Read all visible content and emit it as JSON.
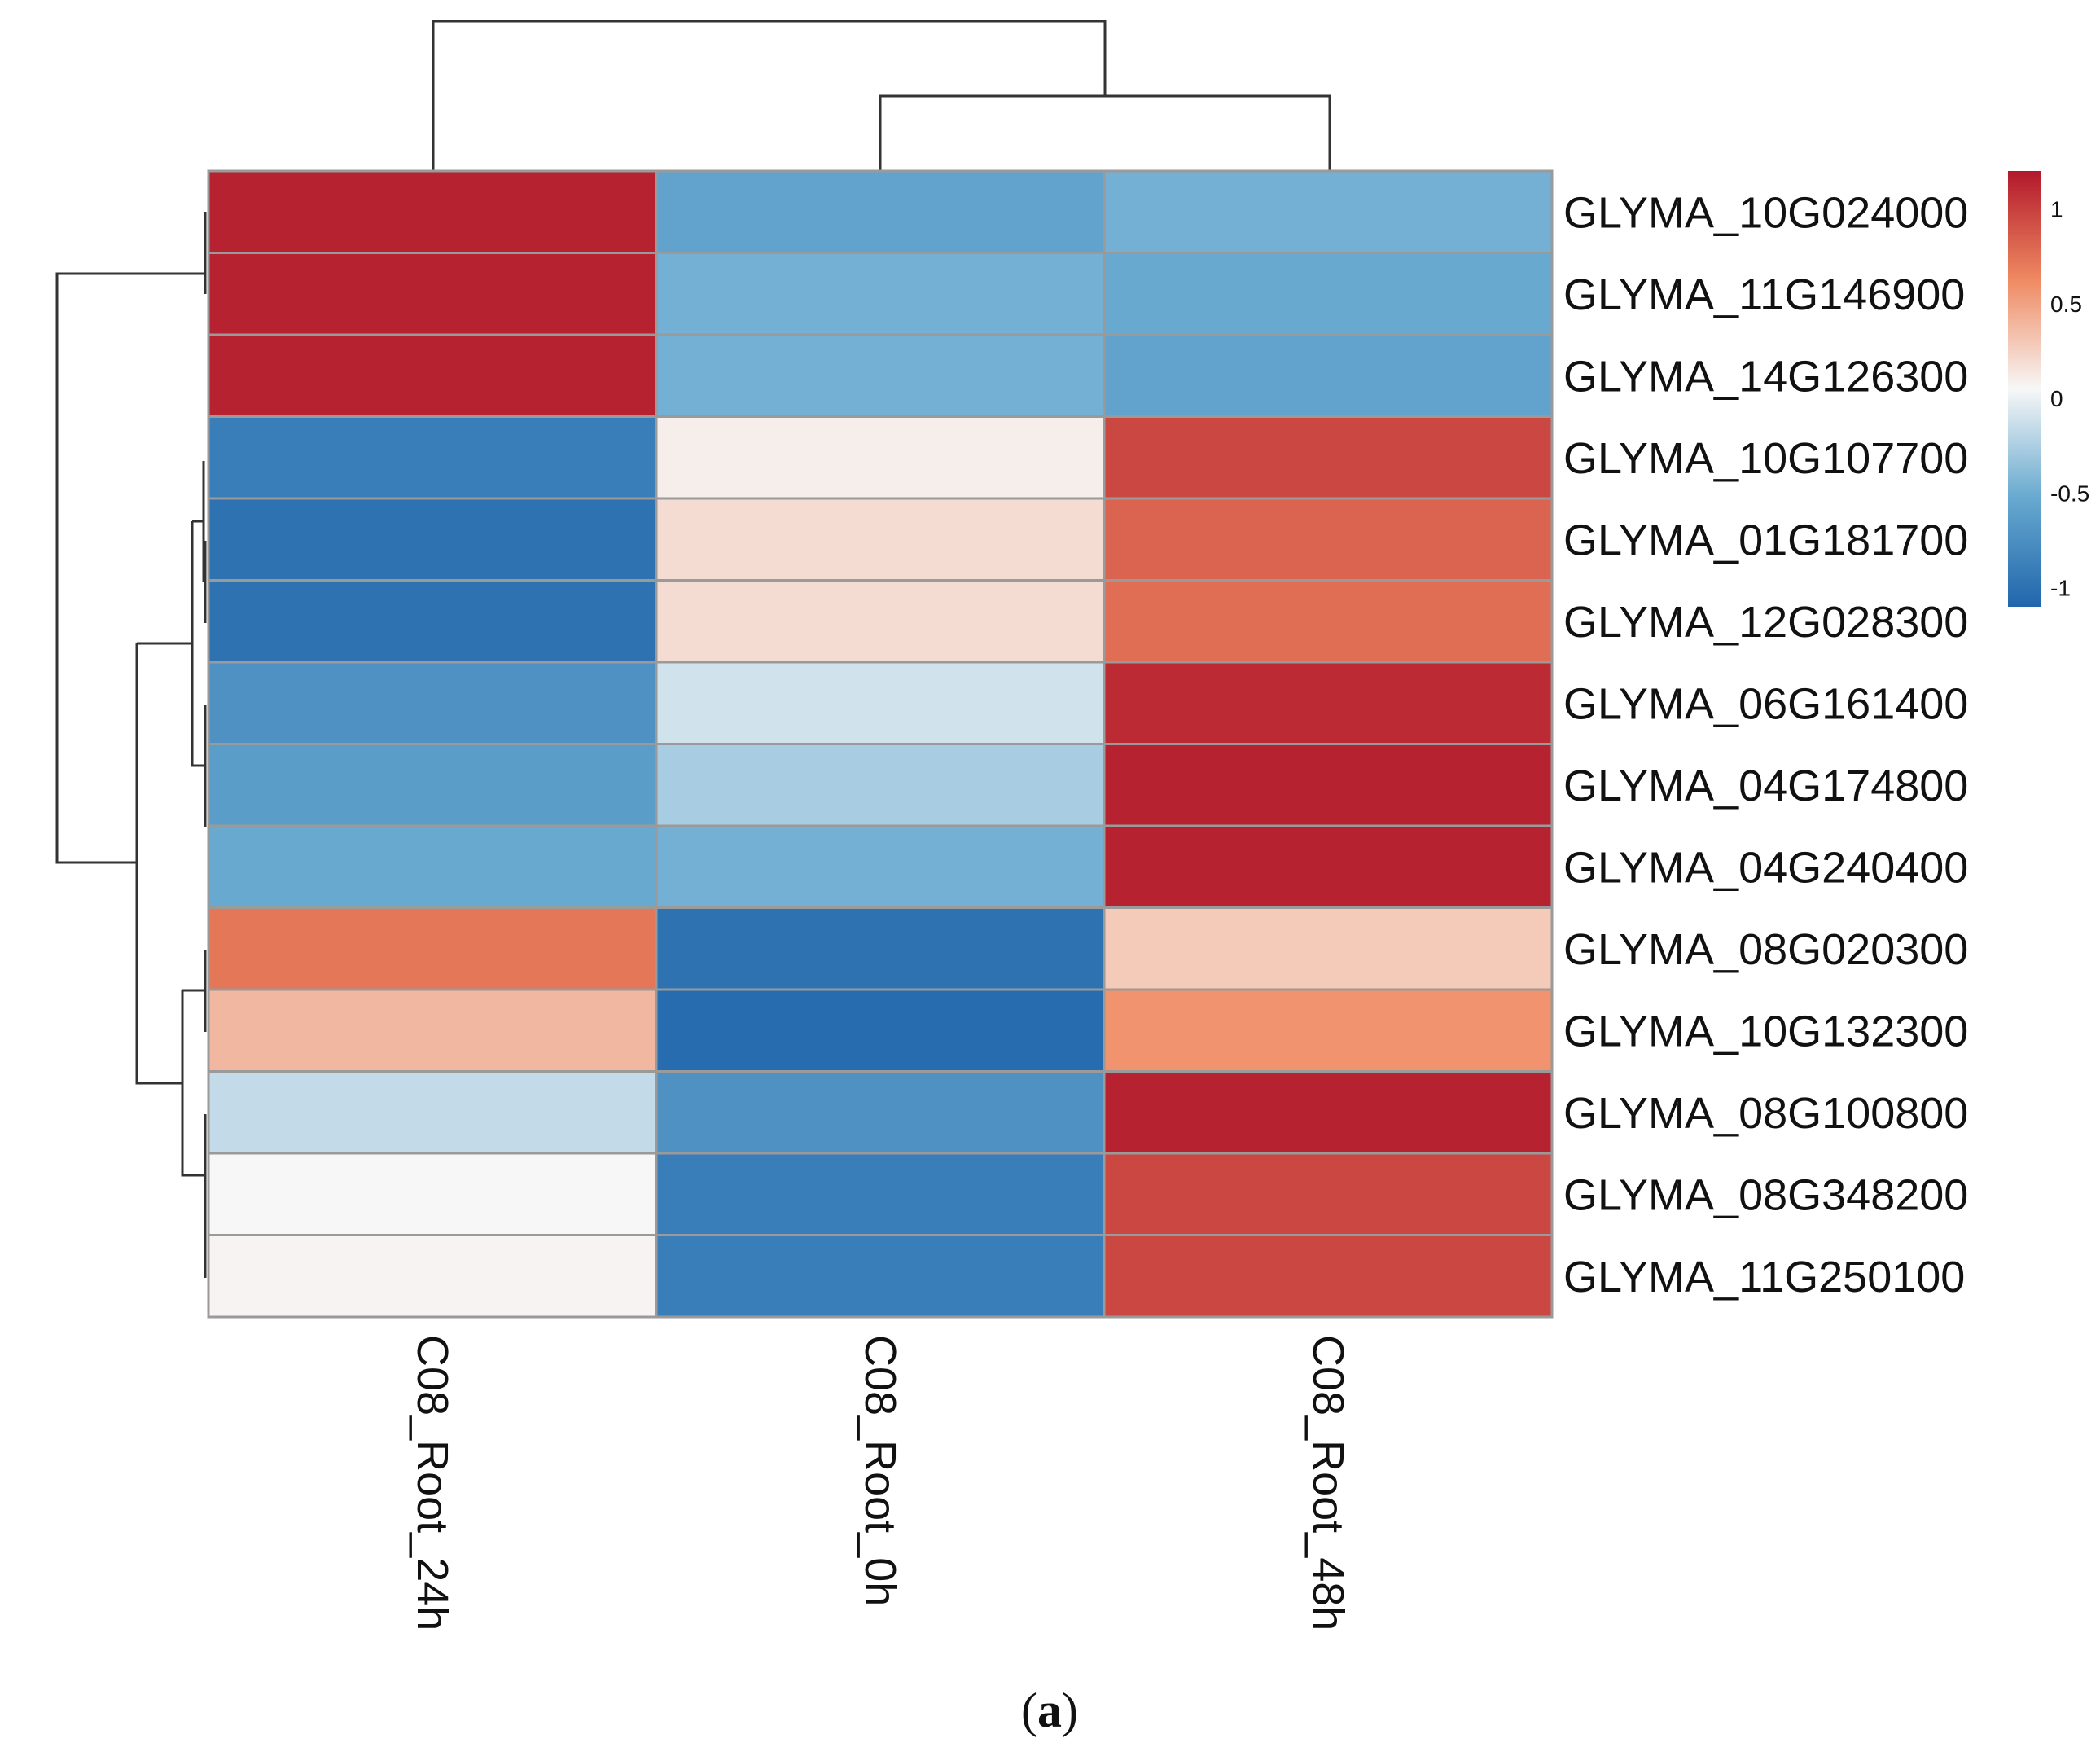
{
  "chart_data": {
    "type": "heatmap",
    "title": "",
    "columns": [
      "C08_Root_24h",
      "C08_Root_0h",
      "C08_Root_48h"
    ],
    "rows": [
      "GLYMA_10G024000",
      "GLYMA_11G146900",
      "GLYMA_14G126300",
      "GLYMA_10G107700",
      "GLYMA_01G181700",
      "GLYMA_12G028300",
      "GLYMA_06G161400",
      "GLYMA_04G174800",
      "GLYMA_04G240400",
      "GLYMA_08G020300",
      "GLYMA_10G132300",
      "GLYMA_08G100800",
      "GLYMA_08G348200",
      "GLYMA_11G250100"
    ],
    "values": [
      [
        1.15,
        -0.6,
        -0.5
      ],
      [
        1.15,
        -0.5,
        -0.55
      ],
      [
        1.15,
        -0.5,
        -0.6
      ],
      [
        -0.9,
        0.05,
        0.95
      ],
      [
        -1.0,
        0.15,
        0.8
      ],
      [
        -1.0,
        0.15,
        0.75
      ],
      [
        -0.75,
        -0.15,
        1.1
      ],
      [
        -0.65,
        -0.3,
        1.15
      ],
      [
        -0.55,
        -0.5,
        1.15
      ],
      [
        0.7,
        -1.0,
        0.25
      ],
      [
        0.35,
        -1.05,
        0.55
      ],
      [
        -0.2,
        -0.75,
        1.15
      ],
      [
        0.0,
        -0.9,
        0.95
      ],
      [
        0.02,
        -0.9,
        0.95
      ]
    ],
    "color_scale": {
      "min": -1.1,
      "max": 1.2,
      "low_color": "#2166ac",
      "mid_color": "#f7f7f7",
      "high_color": "#b2182b",
      "ticks": [
        {
          "value": 1,
          "label": "1"
        },
        {
          "value": 0.5,
          "label": "0.5"
        },
        {
          "value": 0,
          "label": "0"
        },
        {
          "value": -0.5,
          "label": "-0.5"
        },
        {
          "value": -1,
          "label": "-1"
        }
      ]
    },
    "column_dendrogram": "((C08_Root_24h),(C08_Root_0h,C08_Root_48h))",
    "row_dendrogram": "clustered",
    "legend_position": "top-right"
  },
  "caption": {
    "open": "(",
    "letter": "a",
    "close": ")"
  },
  "colors": {
    "dendrogram": "#333333",
    "grid": "#9a9a9a"
  }
}
